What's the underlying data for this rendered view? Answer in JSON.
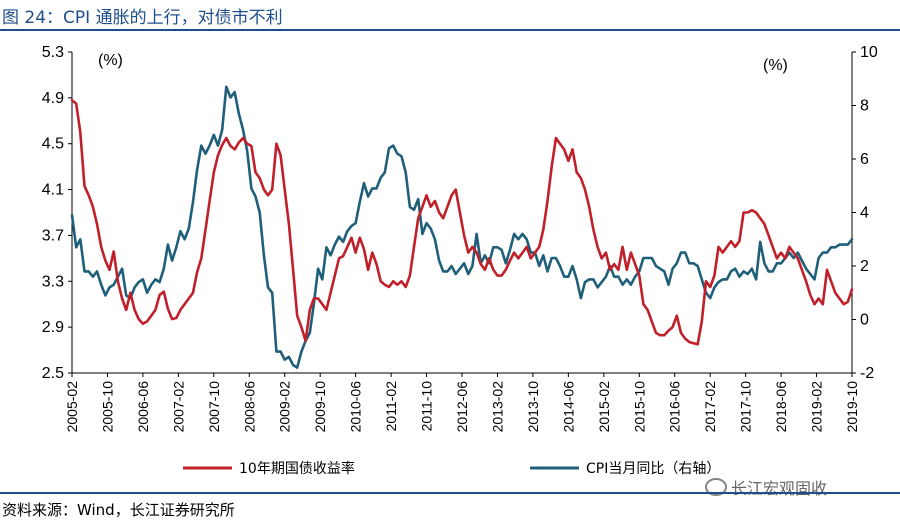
{
  "figure_title": "图 24：CPI 通胀的上行，对债市不利",
  "source_note": "资料来源：Wind，长江证券研究所",
  "watermark": "长江宏观固收",
  "colors": {
    "title": "#1f4e8c",
    "bond": "#c0202a",
    "cpi": "#1f5f7a"
  },
  "chart_data": {
    "type": "line",
    "left_axis": {
      "unit": "(%)",
      "ylim": [
        2.5,
        5.3
      ],
      "ticks": [
        "2.5",
        "2.9",
        "3.3",
        "3.7",
        "4.1",
        "4.5",
        "4.9",
        "5.3"
      ]
    },
    "right_axis": {
      "unit": "(%)",
      "ylim": [
        -2,
        10
      ],
      "ticks": [
        "-2",
        "0",
        "2",
        "4",
        "6",
        "8",
        "10"
      ]
    },
    "x_ticks": [
      "2005-02",
      "2005-10",
      "2006-06",
      "2007-02",
      "2007-10",
      "2008-06",
      "2009-02",
      "2009-10",
      "2010-06",
      "2011-02",
      "2011-10",
      "2012-06",
      "2013-02",
      "2013-10",
      "2014-06",
      "2015-02",
      "2015-10",
      "2016-06",
      "2017-02",
      "2017-10",
      "2018-06",
      "2019-02",
      "2019-10"
    ],
    "x_start": "2005-02",
    "x_end": "2019-10",
    "series": [
      {
        "name": "10年期国债收益率",
        "axis": "left",
        "values": [
          4.88,
          4.85,
          4.6,
          4.13,
          4.05,
          3.95,
          3.8,
          3.6,
          3.48,
          3.4,
          3.56,
          3.3,
          3.15,
          3.05,
          3.2,
          3.05,
          2.97,
          2.93,
          2.95,
          3.0,
          3.05,
          3.18,
          3.21,
          3.06,
          2.97,
          2.98,
          3.05,
          3.1,
          3.15,
          3.2,
          3.38,
          3.5,
          3.75,
          4.0,
          4.25,
          4.4,
          4.49,
          4.55,
          4.48,
          4.45,
          4.51,
          4.55,
          4.5,
          4.48,
          4.25,
          4.2,
          4.1,
          4.05,
          4.1,
          4.5,
          4.4,
          4.1,
          3.8,
          3.4,
          3.0,
          2.9,
          2.78,
          3.05,
          3.15,
          3.15,
          3.1,
          3.05,
          3.2,
          3.35,
          3.5,
          3.52,
          3.6,
          3.68,
          3.55,
          3.68,
          3.58,
          3.4,
          3.55,
          3.45,
          3.3,
          3.27,
          3.25,
          3.3,
          3.27,
          3.3,
          3.25,
          3.35,
          3.6,
          3.85,
          3.95,
          4.05,
          3.95,
          4.0,
          3.9,
          3.85,
          3.95,
          4.05,
          4.1,
          3.9,
          3.7,
          3.55,
          3.6,
          3.55,
          3.45,
          3.4,
          3.5,
          3.4,
          3.35,
          3.35,
          3.4,
          3.48,
          3.55,
          3.5,
          3.55,
          3.6,
          3.5,
          3.55,
          3.6,
          3.75,
          4.0,
          4.3,
          4.55,
          4.5,
          4.45,
          4.35,
          4.45,
          4.25,
          4.2,
          4.1,
          3.95,
          3.75,
          3.6,
          3.5,
          3.55,
          3.4,
          3.45,
          3.4,
          3.6,
          3.4,
          3.55,
          3.45,
          3.35,
          3.1,
          3.05,
          2.95,
          2.85,
          2.83,
          2.83,
          2.87,
          2.9,
          3.0,
          2.85,
          2.8,
          2.77,
          2.76,
          2.75,
          2.95,
          3.3,
          3.25,
          3.35,
          3.6,
          3.55,
          3.6,
          3.65,
          3.6,
          3.65,
          3.9,
          3.9,
          3.92,
          3.9,
          3.85,
          3.8,
          3.7,
          3.6,
          3.5,
          3.55,
          3.5,
          3.6,
          3.55,
          3.5,
          3.4,
          3.3,
          3.18,
          3.1,
          3.15,
          3.1,
          3.4,
          3.3,
          3.2,
          3.15,
          3.1,
          3.12,
          3.23
        ]
      },
      {
        "name": "CPI当月同比（右轴）",
        "axis": "right",
        "values": [
          3.9,
          2.7,
          3.0,
          1.8,
          1.8,
          1.6,
          1.8,
          1.3,
          0.9,
          1.2,
          1.3,
          1.6,
          1.9,
          0.9,
          0.8,
          1.2,
          1.4,
          1.5,
          1.0,
          1.3,
          1.5,
          1.4,
          1.9,
          2.8,
          2.2,
          2.7,
          3.3,
          3.0,
          3.4,
          4.4,
          5.6,
          6.5,
          6.2,
          6.5,
          6.9,
          6.5,
          7.1,
          8.7,
          8.3,
          8.5,
          7.7,
          7.1,
          6.3,
          4.9,
          4.6,
          4.0,
          2.4,
          1.2,
          1.0,
          -1.2,
          -1.2,
          -1.5,
          -1.4,
          -1.7,
          -1.8,
          -1.2,
          -0.8,
          -0.5,
          0.6,
          1.9,
          1.5,
          2.7,
          2.4,
          2.8,
          3.1,
          2.9,
          3.3,
          3.5,
          3.6,
          4.4,
          5.1,
          4.6,
          4.9,
          4.9,
          5.3,
          5.5,
          6.4,
          6.5,
          6.2,
          6.1,
          5.5,
          4.2,
          4.1,
          4.5,
          3.2,
          3.6,
          3.4,
          3.0,
          2.2,
          1.8,
          1.8,
          2.0,
          1.7,
          1.9,
          2.1,
          1.7,
          2.0,
          3.2,
          2.1,
          2.4,
          2.1,
          2.7,
          2.7,
          2.6,
          2.1,
          2.6,
          3.2,
          3.0,
          3.2,
          3.0,
          2.5,
          2.5,
          2.0,
          2.4,
          1.8,
          2.3,
          2.3,
          2.0,
          1.6,
          1.6,
          2.0,
          1.5,
          0.8,
          1.4,
          1.5,
          1.5,
          1.2,
          1.4,
          1.6,
          2.0,
          1.6,
          1.6,
          1.3,
          1.5,
          1.3,
          1.6,
          1.8,
          2.3,
          2.3,
          2.3,
          2.0,
          1.9,
          1.8,
          1.3,
          1.9,
          2.1,
          2.5,
          2.5,
          2.1,
          2.1,
          2.0,
          1.5,
          1.0,
          0.8,
          1.2,
          1.4,
          1.5,
          1.5,
          1.8,
          1.9,
          1.6,
          1.8,
          1.7,
          1.9,
          1.5,
          2.9,
          2.1,
          1.8,
          1.8,
          2.1,
          2.1,
          2.3,
          2.5,
          2.3,
          2.5,
          2.2,
          1.9,
          1.7,
          1.5,
          2.3,
          2.5,
          2.5,
          2.7,
          2.7,
          2.8,
          2.8,
          2.8,
          3.0
        ]
      }
    ]
  }
}
